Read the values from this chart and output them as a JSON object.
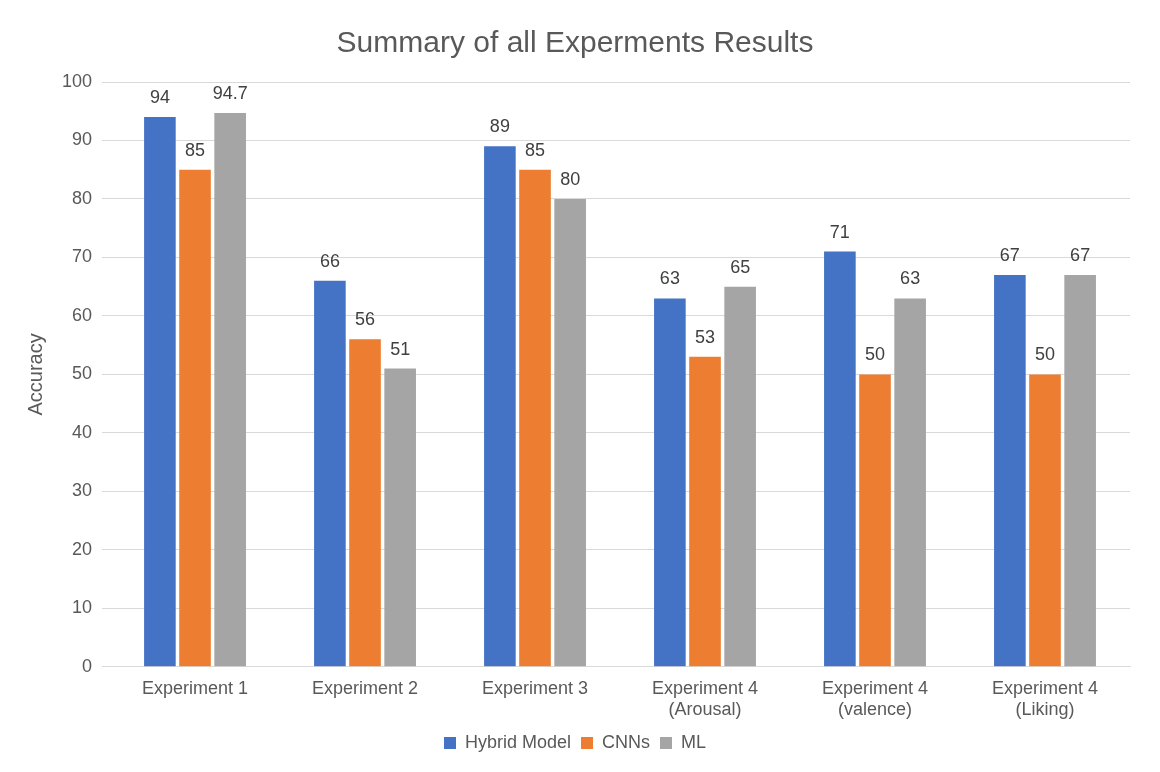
{
  "chart_data": {
    "type": "bar",
    "title": "Summary of all Experments Results",
    "ylabel": "Accuracy",
    "categories": [
      "Experiment 1",
      "Experiment 2",
      "Experiment 3",
      "Experiment 4\n(Arousal)",
      "Experiment 4\n(valence)",
      "Experiment 4\n(Liking)"
    ],
    "series": [
      {
        "name": "Hybrid Model",
        "color": "#4472c4",
        "values": [
          94,
          66,
          89,
          63,
          71,
          67
        ]
      },
      {
        "name": "CNNs",
        "color": "#ed7d31",
        "values": [
          85,
          56,
          85,
          53,
          50,
          50
        ]
      },
      {
        "name": "ML",
        "color": "#a5a5a5",
        "values": [
          94.7,
          51,
          80,
          65,
          63,
          67
        ]
      }
    ],
    "ylim": [
      0,
      100
    ],
    "yticks": [
      0,
      10,
      20,
      30,
      40,
      50,
      60,
      70,
      80,
      90,
      100
    ],
    "grid": "y",
    "legend": "bottom",
    "data_labels": true
  }
}
